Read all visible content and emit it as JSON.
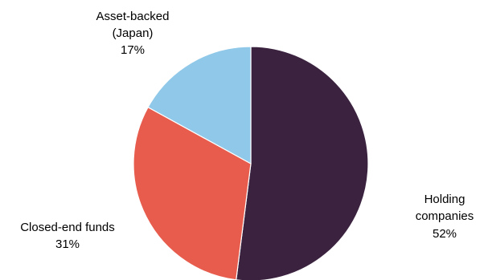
{
  "chart_data": {
    "type": "pie",
    "slices": [
      {
        "label_lines": [
          "Holding",
          "companies"
        ],
        "value": 52,
        "value_label": "52%",
        "color": "#3b2340"
      },
      {
        "label_lines": [
          "Closed-end funds"
        ],
        "value": 31,
        "value_label": "31%",
        "color": "#e75c4d"
      },
      {
        "label_lines": [
          "Asset-backed",
          "(Japan)"
        ],
        "value": 17,
        "value_label": "17%",
        "color": "#8fc8e8"
      }
    ]
  }
}
